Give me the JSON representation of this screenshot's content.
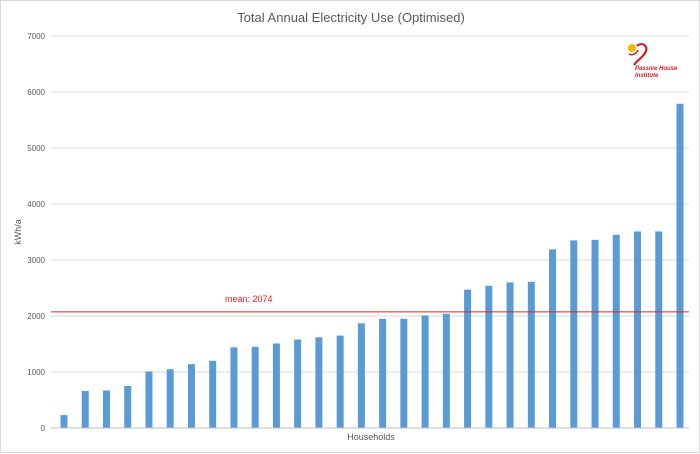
{
  "chart_data": {
    "type": "bar",
    "title": "Total Annual Electricity Use (Optimised)",
    "xlabel": "Households",
    "ylabel": "kWh/a",
    "ylim": [
      0,
      7000
    ],
    "yticks": [
      0,
      1000,
      2000,
      3000,
      4000,
      5000,
      6000,
      7000
    ],
    "grid": true,
    "values": [
      230,
      660,
      670,
      750,
      1010,
      1050,
      1140,
      1200,
      1440,
      1450,
      1510,
      1580,
      1620,
      1650,
      1870,
      1950,
      1950,
      2010,
      2040,
      2470,
      2540,
      2600,
      2610,
      3190,
      3350,
      3360,
      3450,
      3510,
      3510,
      5790
    ],
    "bar_color": "#5b9bd5",
    "mean": {
      "value": 2074,
      "label": "mean: 2074",
      "color": "#e02020"
    }
  },
  "logo": {
    "line1": "Passive House",
    "line2": "Institute",
    "color": "#d21f1f",
    "accent": "#f2b800"
  }
}
